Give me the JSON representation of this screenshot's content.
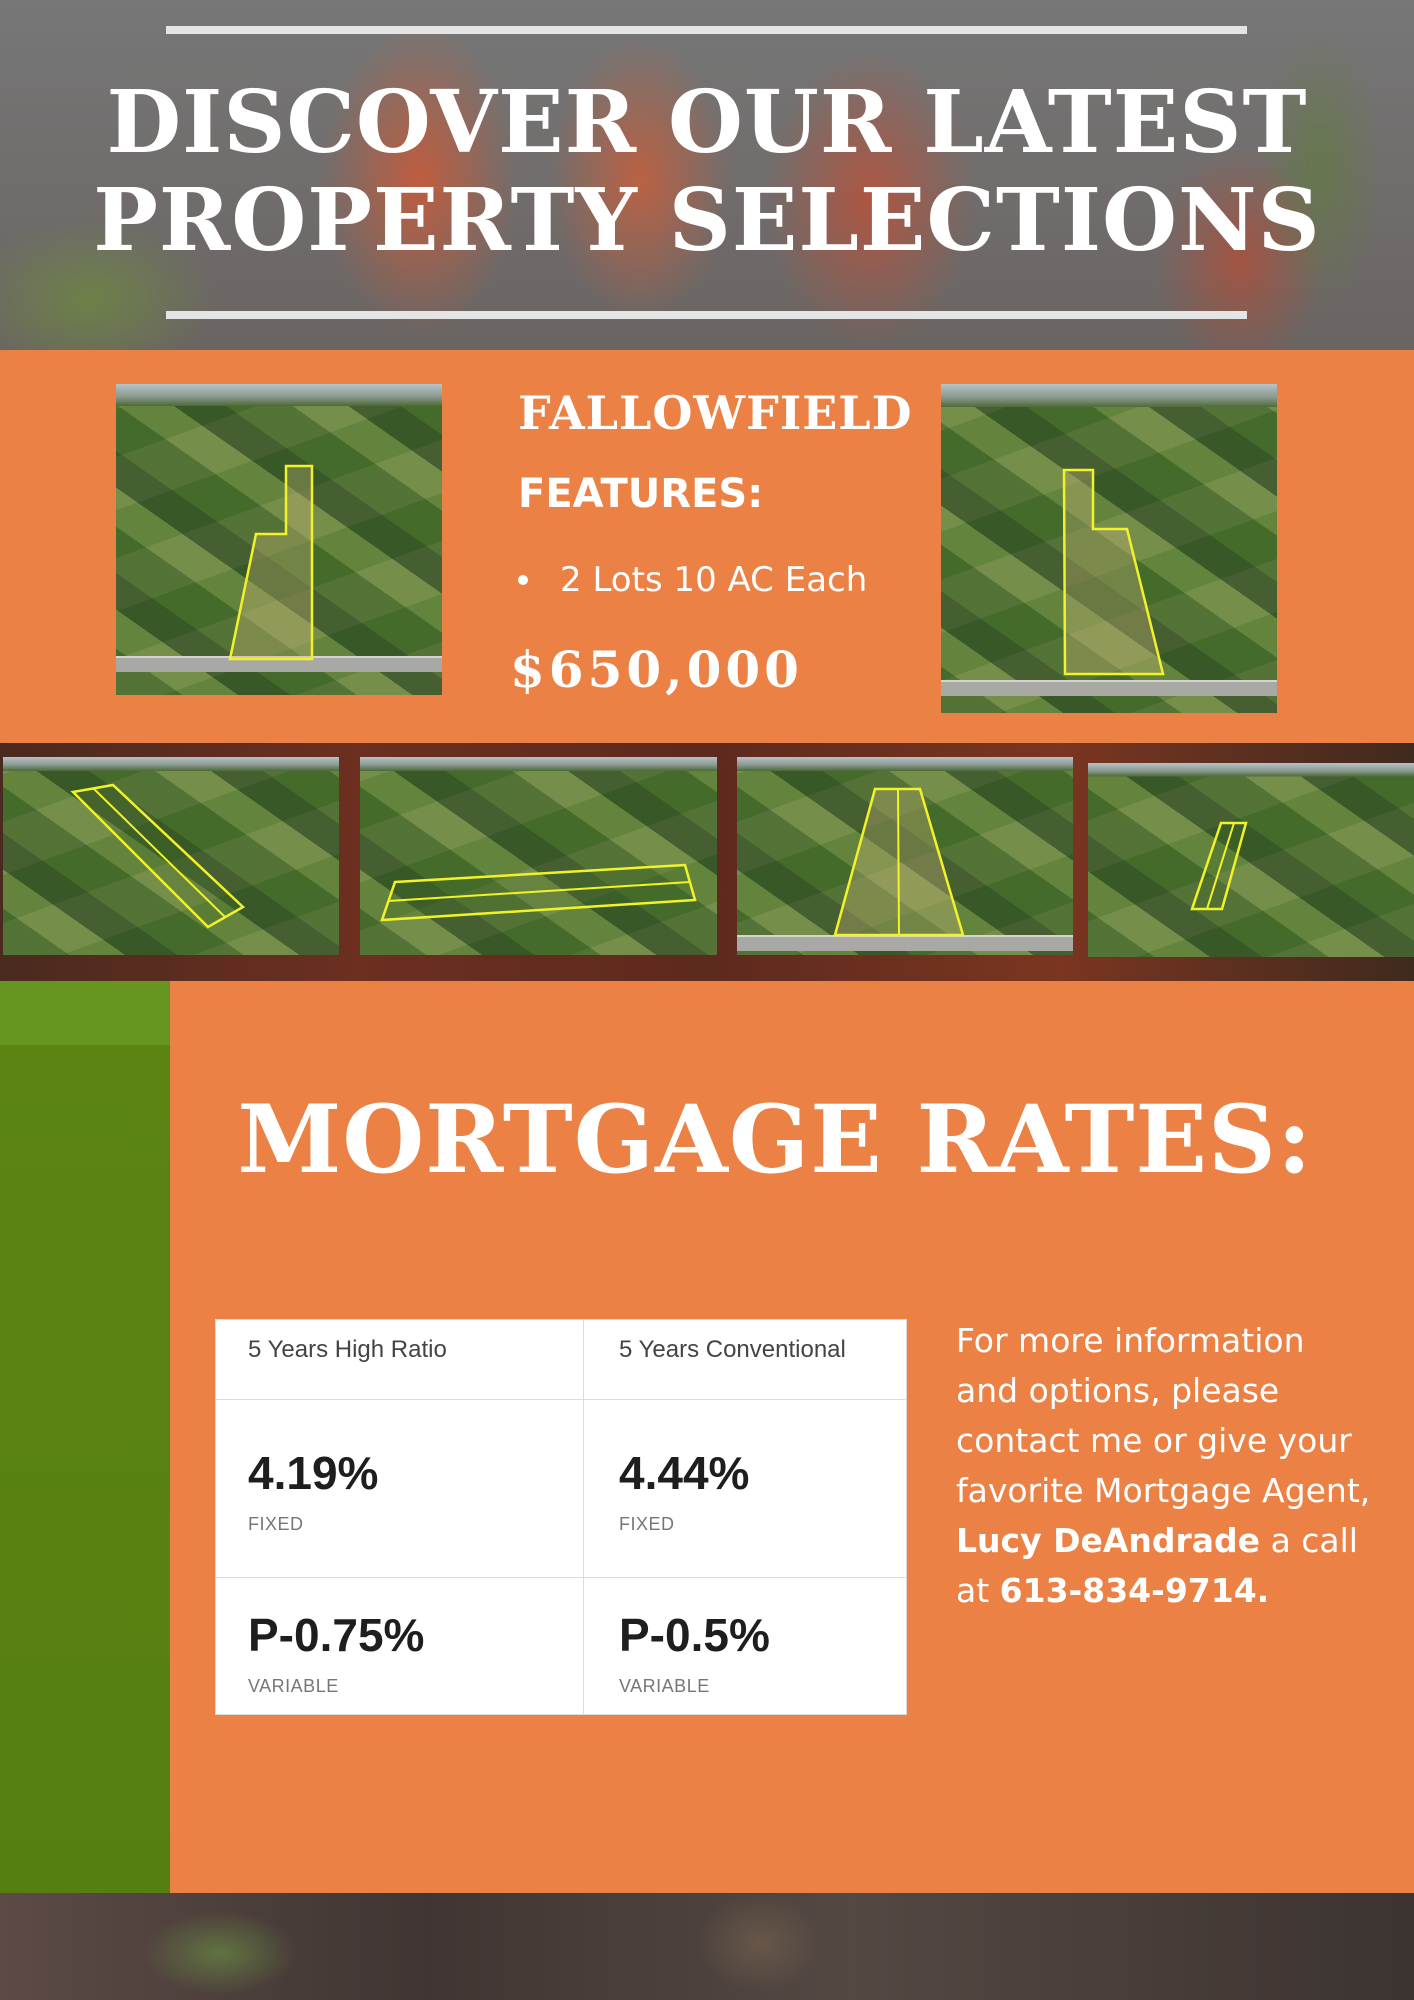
{
  "header": {
    "title_line1": "DISCOVER OUR LATEST",
    "title_line2": "PROPERTY SELECTIONS"
  },
  "property": {
    "name": "FALLOWFIELD",
    "features_label": "FEATURES:",
    "features": [
      "2 Lots 10 AC Each"
    ],
    "price": "$650,000"
  },
  "mortgage": {
    "title": "MORTGAGE RATES:",
    "columns": [
      "5 Years High Ratio",
      "5 Years Conventional"
    ],
    "rows": [
      {
        "values": [
          "4.19%",
          "4.44%"
        ],
        "type": "FIXED"
      },
      {
        "values": [
          "P-0.75%",
          "P-0.5%"
        ],
        "type": "VARIABLE"
      }
    ]
  },
  "contact": {
    "text_before": "For more information and options, please contact me or give your favorite Mortgage Agent,",
    "agent_name": "Lucy DeAndrade",
    "text_middle": "a call at",
    "phone": "613-834-9714."
  },
  "colors": {
    "accent_orange": "#ec8145",
    "accent_green": "#5b8413",
    "lot_outline": "#f2f22a"
  }
}
